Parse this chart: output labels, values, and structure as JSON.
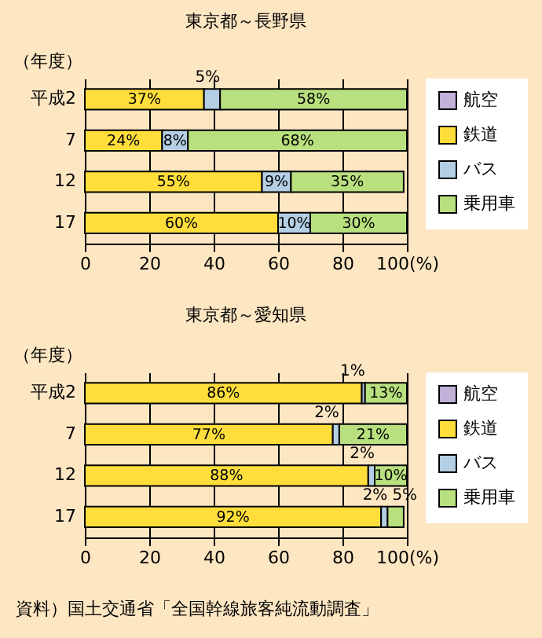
{
  "chart_data": [
    {
      "type": "bar",
      "orientation": "horizontal",
      "stacked": true,
      "title": "東京都～長野県",
      "ylabel": "（年度）",
      "categories": [
        "平成2",
        "7",
        "12",
        "17"
      ],
      "series": [
        {
          "name": "航空",
          "color": "#c0b2d8",
          "values": [
            null,
            null,
            null,
            null
          ],
          "value_labels": [
            null,
            null,
            null,
            null
          ]
        },
        {
          "name": "鉄道",
          "color": "#ffde3c",
          "values": [
            37,
            24,
            55,
            60
          ],
          "value_labels": [
            "37%",
            "24%",
            "55%",
            "60%"
          ]
        },
        {
          "name": "バス",
          "color": "#b4cfe4",
          "values": [
            5,
            8,
            9,
            10
          ],
          "value_labels": [
            "5%",
            "8%",
            "9%",
            "10%"
          ]
        },
        {
          "name": "乗用車",
          "color": "#b8e07e",
          "values": [
            58,
            68,
            35,
            30
          ],
          "value_labels": [
            "58%",
            "68%",
            "35%",
            "30%"
          ]
        }
      ],
      "xlim": [
        0,
        100
      ],
      "xticks": [
        0,
        20,
        40,
        60,
        80,
        {
          "value": 100,
          "label": "100(%)"
        }
      ],
      "grid": "x",
      "legend": "right"
    },
    {
      "type": "bar",
      "orientation": "horizontal",
      "stacked": true,
      "title": "東京都～愛知県",
      "ylabel": "（年度）",
      "categories": [
        "平成2",
        "7",
        "12",
        "17"
      ],
      "series": [
        {
          "name": "航空",
          "color": "#c0b2d8",
          "values": [
            null,
            null,
            null,
            null
          ],
          "value_labels": [
            null,
            null,
            null,
            null
          ]
        },
        {
          "name": "鉄道",
          "color": "#ffde3c",
          "values": [
            86,
            77,
            88,
            92
          ],
          "value_labels": [
            "86%",
            "77%",
            "88%",
            "92%"
          ]
        },
        {
          "name": "バス",
          "color": "#b4cfe4",
          "values": [
            1,
            2,
            2,
            2
          ],
          "value_labels": [
            "1%",
            "2%",
            "2%",
            "2%"
          ]
        },
        {
          "name": "乗用車",
          "color": "#b8e07e",
          "values": [
            13,
            21,
            10,
            5
          ],
          "value_labels": [
            "13%",
            "21%",
            "10%",
            "5%"
          ]
        }
      ],
      "xlim": [
        0,
        100
      ],
      "xticks": [
        0,
        20,
        40,
        60,
        80,
        {
          "value": 100,
          "label": "100(%)"
        }
      ],
      "grid": "x",
      "legend": "right",
      "annotations": [
        "資料）国土交通省「全国幹線旅客純流動調査」"
      ]
    }
  ]
}
